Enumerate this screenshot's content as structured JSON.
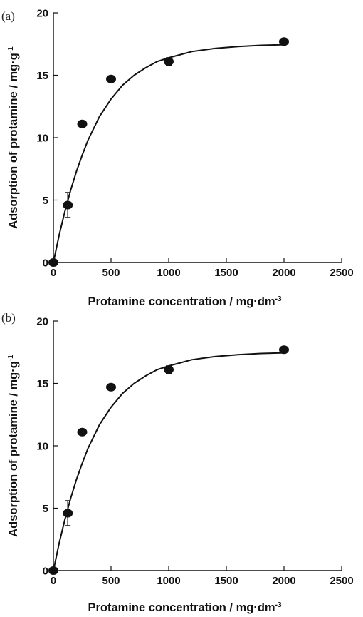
{
  "chart_data": [
    {
      "type": "scatter",
      "panel_label": "(a)",
      "xlabel": "Protamine concentration / mg·dm",
      "xlabel_sup": "-3",
      "ylabel": "Adsorption of protamine / mg·g",
      "ylabel_sup": "-1",
      "xlim": [
        0,
        2500
      ],
      "ylim": [
        0,
        20
      ],
      "xticks": [
        0,
        500,
        1000,
        1500,
        2000,
        2500
      ],
      "yticks": [
        0,
        5,
        10,
        15,
        20
      ],
      "grid": false,
      "series": [
        {
          "points": [
            {
              "x": 0,
              "y": 0,
              "err": 0
            },
            {
              "x": 125,
              "y": 4.6,
              "err": 1.0
            },
            {
              "x": 250,
              "y": 11.1,
              "err": 0
            },
            {
              "x": 500,
              "y": 14.7,
              "err": 0
            },
            {
              "x": 1000,
              "y": 16.1,
              "err": 0.3
            },
            {
              "x": 2000,
              "y": 17.7,
              "err": 0.2
            }
          ]
        }
      ],
      "fit_curve": {
        "x": [
          0,
          50,
          100,
          150,
          200,
          250,
          300,
          400,
          500,
          600,
          700,
          800,
          900,
          1000,
          1200,
          1400,
          1600,
          1800,
          2000
        ],
        "y": [
          0,
          2.2,
          4.1,
          5.8,
          7.3,
          8.6,
          9.8,
          11.7,
          13.1,
          14.2,
          15.0,
          15.6,
          16.1,
          16.4,
          16.9,
          17.15,
          17.3,
          17.4,
          17.45
        ]
      }
    },
    {
      "type": "scatter",
      "panel_label": "(b)",
      "xlabel": "Protamine concentration / mg·dm",
      "xlabel_sup": "-3",
      "ylabel": "Adsorption of protamine / mg·g",
      "ylabel_sup": "-1",
      "xlim": [
        0,
        2500
      ],
      "ylim": [
        0,
        20
      ],
      "xticks": [
        0,
        500,
        1000,
        1500,
        2000,
        2500
      ],
      "yticks": [
        0,
        5,
        10,
        15,
        20
      ],
      "grid": false,
      "series": [
        {
          "points": [
            {
              "x": 0,
              "y": 0,
              "err": 0
            },
            {
              "x": 125,
              "y": 4.6,
              "err": 1.0
            },
            {
              "x": 250,
              "y": 11.1,
              "err": 0
            },
            {
              "x": 500,
              "y": 14.7,
              "err": 0
            },
            {
              "x": 1000,
              "y": 16.1,
              "err": 0.3
            },
            {
              "x": 2000,
              "y": 17.7,
              "err": 0.2
            }
          ]
        }
      ],
      "fit_curve": {
        "x": [
          0,
          50,
          100,
          150,
          200,
          250,
          300,
          400,
          500,
          600,
          700,
          800,
          900,
          1000,
          1200,
          1400,
          1600,
          1800,
          2000
        ],
        "y": [
          0,
          2.2,
          4.1,
          5.8,
          7.3,
          8.6,
          9.8,
          11.7,
          13.1,
          14.2,
          15.0,
          15.6,
          16.1,
          16.4,
          16.9,
          17.15,
          17.3,
          17.4,
          17.45
        ]
      }
    }
  ]
}
